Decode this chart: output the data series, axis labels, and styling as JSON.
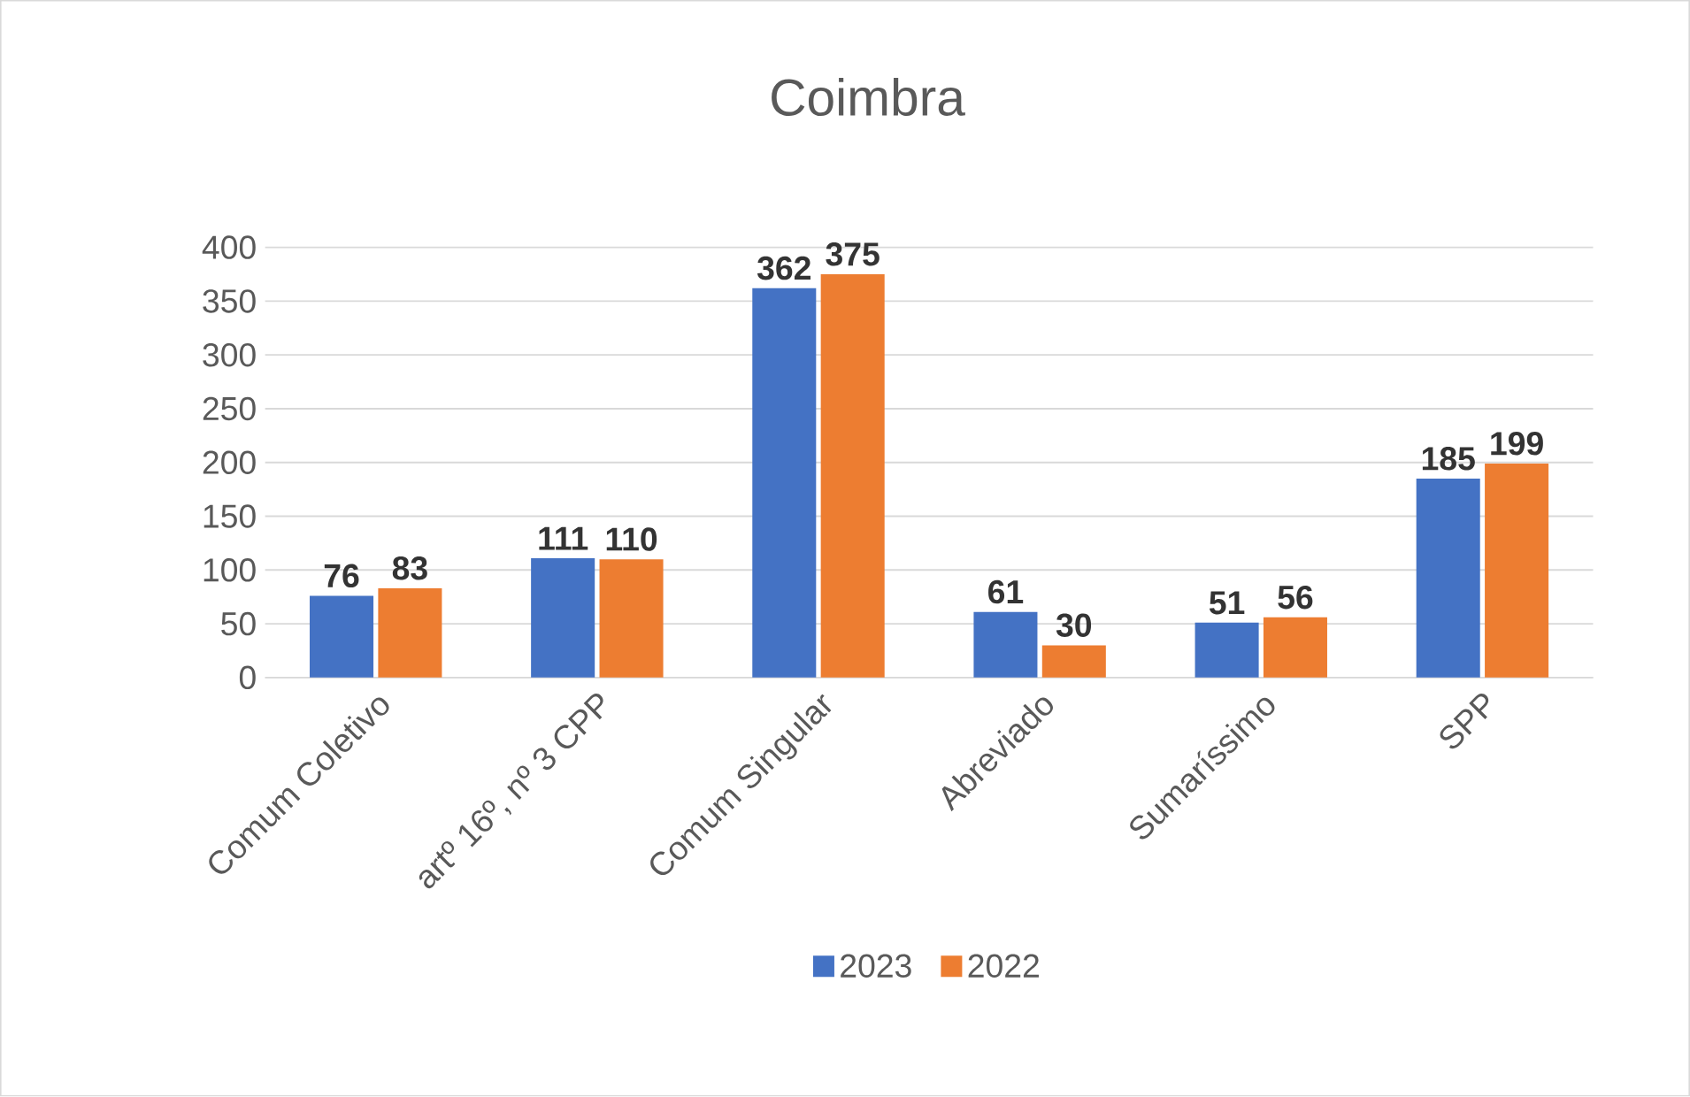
{
  "chart_data": {
    "type": "bar",
    "title": "Coimbra",
    "categories": [
      "Comum Coletivo",
      "artº 16º, nº 3 CPP",
      "Comum Singular",
      "Abreviado",
      "Sumaríssimo",
      "SPP"
    ],
    "series": [
      {
        "name": "2023",
        "color": "#4472c4",
        "values": [
          76,
          111,
          362,
          61,
          51,
          185
        ]
      },
      {
        "name": "2022",
        "color": "#ed7d31",
        "values": [
          83,
          110,
          375,
          30,
          56,
          199
        ]
      }
    ],
    "ylim": [
      0,
      400
    ],
    "yticks": [
      0,
      50,
      100,
      150,
      200,
      250,
      300,
      350,
      400
    ],
    "grid": "y",
    "legend": "bottom",
    "data_labels": true
  }
}
